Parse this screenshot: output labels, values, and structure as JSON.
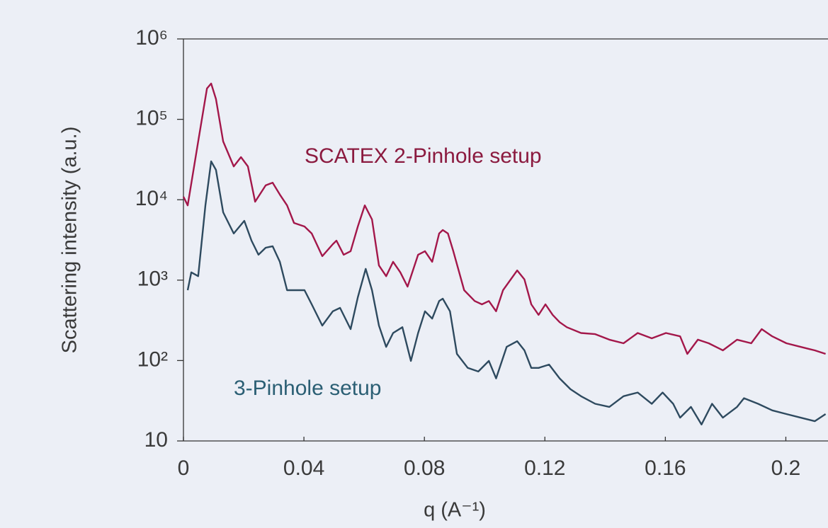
{
  "chart_data": {
    "type": "line",
    "xlabel": "q (A⁻¹)",
    "ylabel": "Scattering intensity (a.u.)",
    "log_y": true,
    "xlim": [
      0,
      0.214
    ],
    "ylim": [
      10,
      1000000
    ],
    "xticks": [
      0,
      0.04,
      0.08,
      0.12,
      0.16,
      0.2
    ],
    "yticks": [
      10,
      {
        "value": 100,
        "label": "10²"
      },
      {
        "value": 1000,
        "label": "10³"
      },
      {
        "value": 10000,
        "label": "10⁴"
      },
      {
        "value": 100000,
        "label": "10⁵"
      },
      {
        "value": 1000000,
        "label": "10⁶"
      }
    ],
    "annotations": [
      {
        "text": "SCATEX 2-Pinhole setup",
        "color": "#8b1a3f"
      },
      {
        "text": "3-Pinhole setup",
        "color": "#2b5f74"
      }
    ],
    "series": [
      {
        "color": "#a3174a",
        "x": [
          0,
          0.0014,
          0.0049,
          0.0078,
          0.0092,
          0.0108,
          0.0132,
          0.0167,
          0.0191,
          0.0214,
          0.0238,
          0.0273,
          0.0296,
          0.032,
          0.0344,
          0.0367,
          0.0402,
          0.0426,
          0.0461,
          0.0496,
          0.0508,
          0.0532,
          0.0555,
          0.0579,
          0.0602,
          0.0626,
          0.0649,
          0.0673,
          0.0696,
          0.072,
          0.0744,
          0.0779,
          0.0802,
          0.0826,
          0.0849,
          0.0861,
          0.0878,
          0.0896,
          0.0932,
          0.0967,
          0.0991,
          0.1014,
          0.1038,
          0.1061,
          0.1108,
          0.1132,
          0.1155,
          0.1179,
          0.1202,
          0.1226,
          0.1249,
          0.1273,
          0.132,
          0.1367,
          0.1414,
          0.1461,
          0.1508,
          0.1555,
          0.1602,
          0.1649,
          0.1673,
          0.1708,
          0.1744,
          0.1791,
          0.1838,
          0.1885,
          0.192,
          0.1955,
          0.2002,
          0.2049,
          0.2096,
          0.2132
        ],
        "values": [
          10900,
          8500,
          53000,
          242000,
          279000,
          179000,
          53000,
          26000,
          33900,
          26000,
          9450,
          15100,
          16300,
          11600,
          8500,
          5140,
          4650,
          3800,
          1990,
          2800,
          3100,
          2070,
          2290,
          4650,
          8500,
          5690,
          1520,
          1120,
          1690,
          1250,
          830,
          2070,
          2290,
          1690,
          3800,
          4200,
          3800,
          2290,
          750,
          550,
          500,
          550,
          410,
          750,
          1320,
          1020,
          500,
          370,
          500,
          370,
          300,
          260,
          220,
          213,
          182,
          164,
          220,
          189,
          220,
          200,
          121,
          182,
          164,
          134,
          182,
          164,
          246,
          200,
          164,
          148,
          134,
          121
        ]
      },
      {
        "color": "#2e4a5f",
        "x": [
          0.0014,
          0.0026,
          0.0049,
          0.0073,
          0.0092,
          0.0108,
          0.0132,
          0.0167,
          0.0202,
          0.0226,
          0.0249,
          0.0273,
          0.0296,
          0.032,
          0.0344,
          0.0379,
          0.0402,
          0.0426,
          0.0461,
          0.0496,
          0.052,
          0.0555,
          0.0579,
          0.0605,
          0.0626,
          0.0649,
          0.0673,
          0.0696,
          0.0727,
          0.0755,
          0.0779,
          0.0802,
          0.0826,
          0.0849,
          0.0861,
          0.0885,
          0.0908,
          0.0944,
          0.0979,
          0.1014,
          0.1038,
          0.1073,
          0.1108,
          0.1132,
          0.1155,
          0.1179,
          0.1214,
          0.1249,
          0.1285,
          0.132,
          0.1367,
          0.1414,
          0.1461,
          0.1508,
          0.1555,
          0.1591,
          0.1626,
          0.1649,
          0.1685,
          0.172,
          0.1755,
          0.1791,
          0.1838,
          0.1861,
          0.1908,
          0.1955,
          0.2002,
          0.2049,
          0.2096,
          0.2132
        ],
        "values": [
          750,
          1250,
          1120,
          8500,
          30000,
          23500,
          6970,
          3800,
          5470,
          3100,
          2070,
          2530,
          2640,
          1690,
          750,
          750,
          750,
          500,
          272,
          410,
          452,
          246,
          612,
          1380,
          750,
          272,
          148,
          220,
          260,
          99,
          220,
          410,
          333,
          550,
          588,
          410,
          121,
          81,
          73,
          99,
          60,
          148,
          174,
          134,
          81,
          81,
          89,
          60,
          44,
          36,
          29,
          26.5,
          36,
          40,
          29,
          40,
          29,
          19.5,
          26.5,
          16,
          29,
          19.5,
          26.5,
          34,
          29,
          24,
          21.6,
          19.5,
          17.6,
          21.6
        ]
      }
    ]
  }
}
